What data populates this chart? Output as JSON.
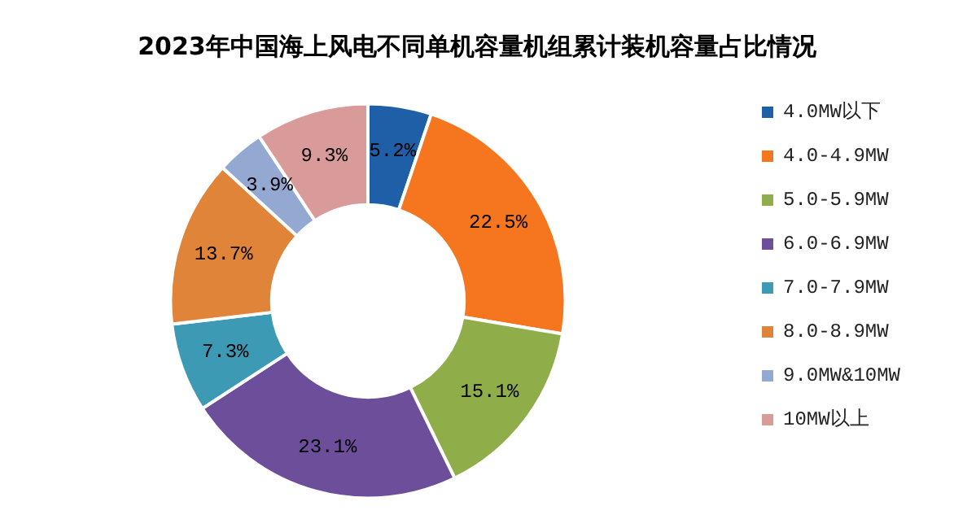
{
  "chart_data": {
    "type": "donut",
    "title": "2023年中国海上风电不同单机容量机组累计装机容量占比情况",
    "categories": [
      "4.0MW以下",
      "4.0-4.9MW",
      "5.0-5.9MW",
      "6.0-6.9MW",
      "7.0-7.9MW",
      "8.0-8.9MW",
      "9.0MW&10MW",
      "10MW以上"
    ],
    "values": [
      5.2,
      22.5,
      15.1,
      23.1,
      7.3,
      13.7,
      3.9,
      9.3
    ],
    "value_labels": [
      "5.2%",
      "22.5%",
      "15.1%",
      "23.1%",
      "7.3%",
      "13.7%",
      "3.9%",
      "9.3%"
    ],
    "colors": [
      "#1f5fa8",
      "#f5761f",
      "#8fae4a",
      "#6c4e9a",
      "#3d9ab5",
      "#e0843a",
      "#93a9d2",
      "#d99a9a"
    ],
    "legend": "right"
  }
}
